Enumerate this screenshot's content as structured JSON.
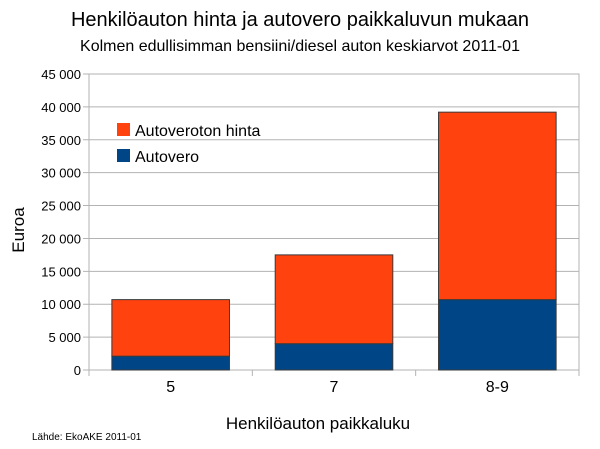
{
  "chart_data": {
    "type": "bar",
    "stacked": true,
    "title": "Henkilöauton hinta ja autovero paikkaluvun mukaan",
    "subtitle": "Kolmen edullisimman bensiini/diesel auton keskiarvot 2011-01",
    "xlabel": "Henkilöauton paikkaluku",
    "ylabel": "Euroa",
    "ylim": [
      0,
      45000
    ],
    "ytick_step": 5000,
    "ytick_labels": [
      "0",
      "5 000",
      "10 000",
      "15 000",
      "20 000",
      "25 000",
      "30 000",
      "35 000",
      "40 000",
      "45 000"
    ],
    "grid": true,
    "legend_position": "top-left",
    "categories": [
      "5",
      "7",
      "8-9"
    ],
    "series": [
      {
        "name": "Autovero",
        "values": [
          2100,
          4000,
          10700
        ],
        "color": "#004586"
      },
      {
        "name": "Autoveroton hinta",
        "values": [
          8600,
          13500,
          28500
        ],
        "color": "#ff420e"
      }
    ],
    "legend_order": [
      1,
      0
    ],
    "source": "Lähde: EkoAKE 2011-01"
  }
}
